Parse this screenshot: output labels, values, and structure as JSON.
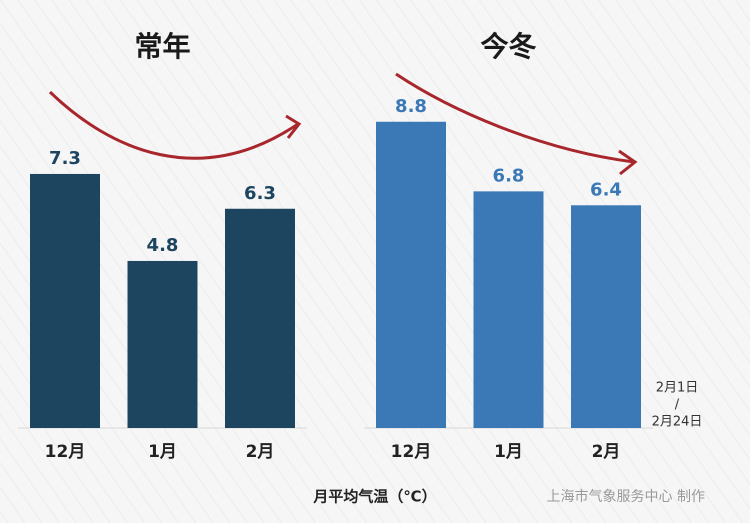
{
  "chart_data": [
    {
      "type": "bar",
      "title": "常年",
      "categories": [
        "12月",
        "1月",
        "2月"
      ],
      "values": [
        7.3,
        4.8,
        6.3
      ],
      "color": "#1d4560",
      "ylim": [
        0,
        10
      ]
    },
    {
      "type": "bar",
      "title": "今冬",
      "categories": [
        "12月",
        "1月",
        "2月"
      ],
      "values": [
        8.8,
        6.8,
        6.4
      ],
      "color": "#3b79b6",
      "ylim": [
        0,
        10
      ],
      "annotation": [
        "2月1日",
        "/",
        "2月24日"
      ]
    }
  ],
  "x_label": "月平均气温（℃）",
  "source": "上海市气象服务中心 制作"
}
